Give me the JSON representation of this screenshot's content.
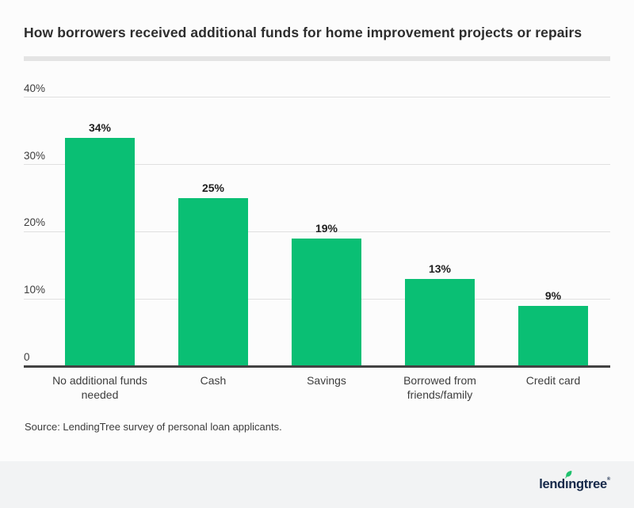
{
  "page": {
    "title": "How borrowers received additional funds for home improvement projects or repairs",
    "source_note": "Source: LendingTree survey of personal loan applicants."
  },
  "chart_data": {
    "type": "bar",
    "title": "How borrowers received additional funds for home improvement projects or repairs",
    "categories": [
      "No additional funds\nneeded",
      "Cash",
      "Savings",
      "Borrowed from\nfriends/family",
      "Credit card"
    ],
    "values": [
      34,
      25,
      19,
      13,
      9
    ],
    "value_labels": [
      "34%",
      "25%",
      "19%",
      "13%",
      "9%"
    ],
    "yticks": [
      {
        "value": 40,
        "label": "40%"
      },
      {
        "value": 30,
        "label": "30%"
      },
      {
        "value": 20,
        "label": "20%"
      },
      {
        "value": 10,
        "label": "10%"
      },
      {
        "value": 0,
        "label": "0"
      }
    ],
    "ylim": [
      0,
      42
    ],
    "xlabel": "",
    "ylabel": "",
    "grid": true,
    "legend": false,
    "bar_color": "#0abf74"
  },
  "footer": {
    "logo_part1": "lend",
    "logo_part2": "ıngtree",
    "logo_reg": "®",
    "logo_leaf_icon": "leaf-icon",
    "brand_navy": "#16294a",
    "brand_green": "#1fc16d"
  },
  "colors": {
    "background": "#fcfcfc",
    "bar_green": "#0abf74",
    "title_text": "#2d2d2d",
    "axis_text": "#3d3d3d",
    "gridline": "#e0e0e0",
    "axis_line": "#424242",
    "divider": "#e4e4e4",
    "footer_background": "#f2f3f4"
  }
}
